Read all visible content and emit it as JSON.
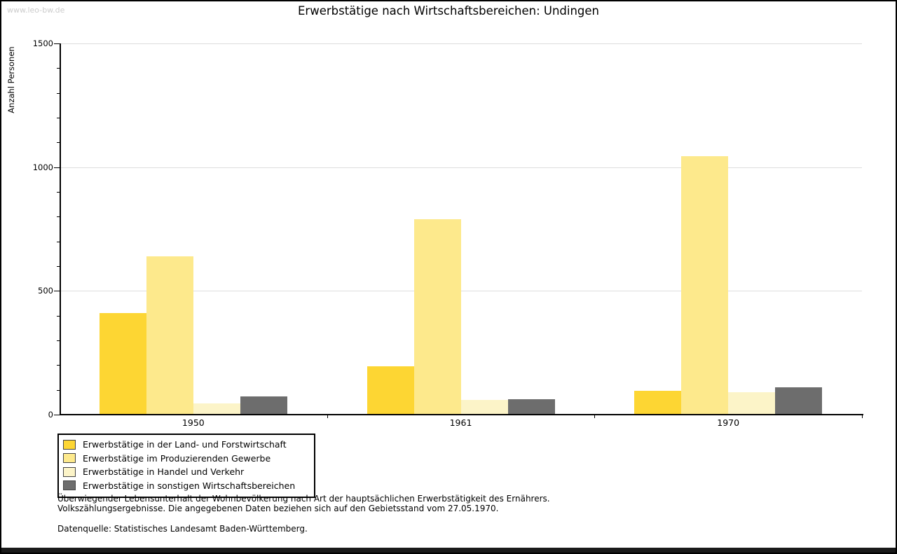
{
  "watermark": "www.leo-bw.de",
  "title": "Erwerbstätige nach Wirtschaftsbereichen: Undingen",
  "chart_data": {
    "type": "bar",
    "title": "Erwerbstätige nach Wirtschaftsbereichen: Undingen",
    "xlabel": "",
    "ylabel": "Anzahl Personen",
    "ylim": [
      0,
      1500
    ],
    "yticks_major": [
      0,
      500,
      1000,
      1500
    ],
    "ytick_minor_step": 100,
    "grid": true,
    "gridline_color": "#dddddd",
    "legend_position": "bottom-left",
    "categories": [
      "1950",
      "1961",
      "1970"
    ],
    "series": [
      {
        "name": "Erwerbstätige in der Land- und Forstwirtschaft",
        "color": "#FDD633",
        "values": [
          410,
          195,
          95
        ]
      },
      {
        "name": "Erwerbstätige im Produzierenden Gewerbe",
        "color": "#FDE98C",
        "values": [
          640,
          790,
          1045
        ]
      },
      {
        "name": "Erwerbstätige in Handel und Verkehr",
        "color": "#FCF4C8",
        "values": [
          45,
          60,
          90
        ]
      },
      {
        "name": "Erwerbstätige in sonstigen Wirtschaftsbereichen",
        "color": "#6D6D6D",
        "values": [
          75,
          62,
          110
        ]
      }
    ]
  },
  "footnotes": [
    "Überwiegender Lebensunterhalt der Wohnbevölkerung nach Art der hauptsächlichen Erwerbstätigkeit des Ernährers.",
    "Volkszählungsergebnisse. Die angegebenen Daten beziehen sich auf den Gebietsstand vom 27.05.1970."
  ],
  "datasource": "Datenquelle: Statistisches Landesamt Baden-Württemberg."
}
